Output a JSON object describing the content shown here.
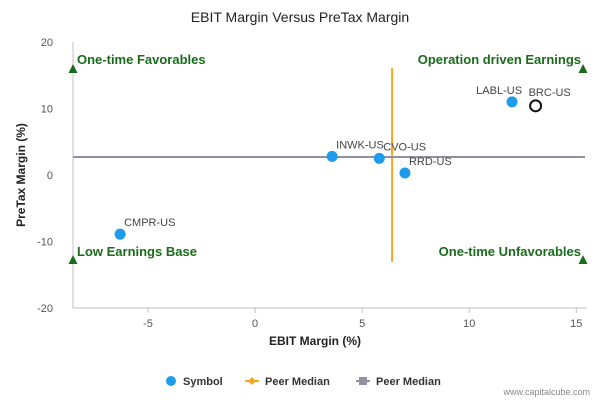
{
  "chart_data": {
    "type": "scatter",
    "title": "EBIT Margin Versus PreTax Margin",
    "xlabel": "EBIT Margin (%)",
    "ylabel": "PreTax Margin (%)",
    "xlim": [
      -8.5,
      15.5
    ],
    "ylim": [
      -20,
      20
    ],
    "x_ticks": [
      -5,
      0,
      5,
      10,
      15
    ],
    "y_ticks": [
      -20,
      -10,
      0,
      10,
      20
    ],
    "grid": false,
    "series": [
      {
        "name": "Symbol",
        "color": "#1e9bea",
        "points": [
          {
            "label": "LABL-US",
            "x": 12.0,
            "y": 11.0
          },
          {
            "label": "INWK-US",
            "x": 3.6,
            "y": 2.8
          },
          {
            "label": "CVO-US",
            "x": 5.8,
            "y": 2.5
          },
          {
            "label": "RRD-US",
            "x": 7.0,
            "y": 0.3
          },
          {
            "label": "CMPR-US",
            "x": -6.3,
            "y": -8.9
          }
        ]
      }
    ],
    "highlight_point": {
      "label": "BRC-US",
      "x": 13.1,
      "y": 10.4
    },
    "peer_median_x": {
      "name": "Peer Median",
      "value": 6.4,
      "color": "#f5a623"
    },
    "peer_median_y": {
      "name": "Peer Median",
      "value": 2.7,
      "color": "#9090a0"
    },
    "quadrant_labels": {
      "top_left": "One-time Favorables",
      "top_right": "Operation driven Earnings",
      "bottom_left": "Low Earnings Base",
      "bottom_right": "One-time Unfavorables"
    },
    "legend_placement": "bottom-center",
    "legend": [
      {
        "label": "Symbol",
        "marker": "circle",
        "color": "#1e9bea"
      },
      {
        "label": "Peer Median",
        "marker": "line-diamond",
        "color": "#f5a623"
      },
      {
        "label": "Peer Median",
        "marker": "line-square",
        "color": "#9090a0"
      }
    ]
  },
  "credit": "www.capitalcube.com"
}
